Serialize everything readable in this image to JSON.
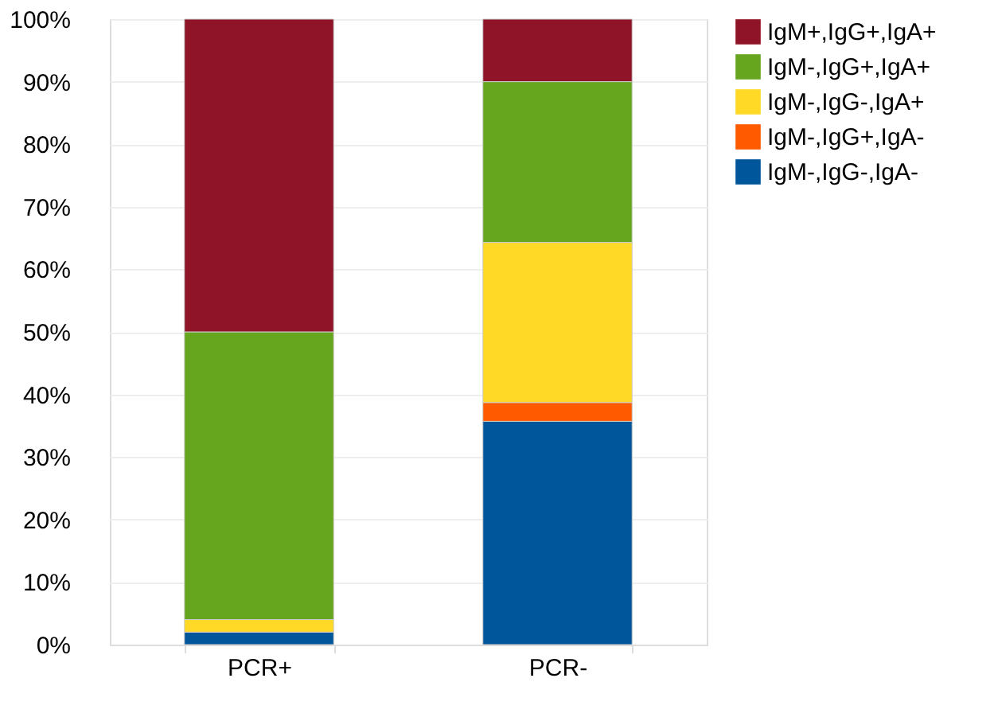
{
  "chart_data": {
    "type": "bar",
    "stacked": true,
    "categories": [
      "PCR+",
      "PCR-"
    ],
    "series": [
      {
        "name": "IgM-,IgG-,IgA-",
        "color": "#00569b",
        "values": [
          2.0,
          35.7
        ]
      },
      {
        "name": "IgM-,IgG+,IgA-",
        "color": "#ff5a00",
        "values": [
          0,
          3.0
        ]
      },
      {
        "name": "IgM-,IgG-,IgA+",
        "color": "#ffd926",
        "values": [
          2.0,
          25.6
        ]
      },
      {
        "name": "IgM-,IgG+,IgA+",
        "color": "#66a61e",
        "values": [
          46.0,
          25.7
        ]
      },
      {
        "name": "IgM+,IgG+,IgA+",
        "color": "#8f1428",
        "values": [
          50.0,
          10.0
        ]
      }
    ],
    "ylim": [
      0,
      100
    ],
    "yticks": [
      {
        "value": 0,
        "label": "0%"
      },
      {
        "value": 10,
        "label": "10%"
      },
      {
        "value": 20,
        "label": "20%"
      },
      {
        "value": 30,
        "label": "30%"
      },
      {
        "value": 40,
        "label": "40%"
      },
      {
        "value": 50,
        "label": "50%"
      },
      {
        "value": 60,
        "label": "60%"
      },
      {
        "value": 70,
        "label": "70%"
      },
      {
        "value": 80,
        "label": "80%"
      },
      {
        "value": 90,
        "label": "90%"
      },
      {
        "value": 100,
        "label": "100%"
      }
    ],
    "grid": "y",
    "legend": "right"
  }
}
